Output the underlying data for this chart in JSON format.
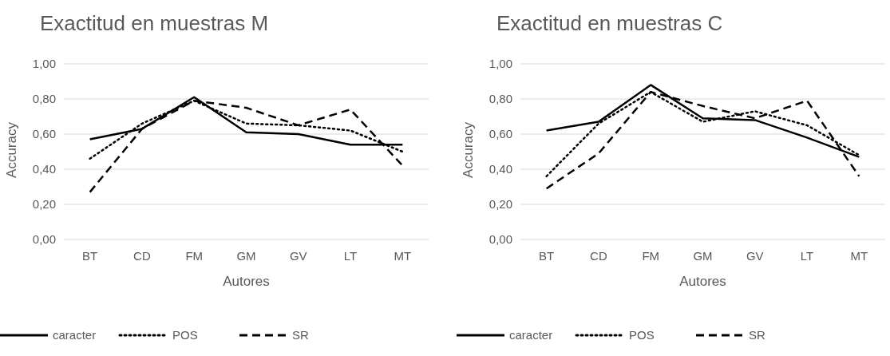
{
  "chart_data": [
    {
      "type": "line",
      "title": "Exactitud en muestras M",
      "xlabel": "Autores",
      "ylabel": "Accuracy",
      "categories": [
        "BT",
        "CD",
        "FM",
        "GM",
        "GV",
        "LT",
        "MT"
      ],
      "series": [
        {
          "name": "caracter",
          "color": "#000000",
          "line_style": "solid",
          "values": [
            0.57,
            0.63,
            0.81,
            0.61,
            0.6,
            0.54,
            0.54
          ]
        },
        {
          "name": "POS",
          "color": "#000000",
          "line_style": "dotted",
          "values": [
            0.46,
            0.66,
            0.79,
            0.66,
            0.65,
            0.62,
            0.5
          ]
        },
        {
          "name": "SR",
          "color": "#000000",
          "line_style": "dashed",
          "values": [
            0.27,
            0.63,
            0.79,
            0.75,
            0.65,
            0.74,
            0.42
          ]
        }
      ],
      "ylim": [
        0,
        1
      ],
      "yticks": [
        {
          "value": 0,
          "label": "0,00"
        },
        {
          "value": 0.2,
          "label": "0,20"
        },
        {
          "value": 0.4,
          "label": "0,40"
        },
        {
          "value": 0.6,
          "label": "0,60"
        },
        {
          "value": 0.8,
          "label": "0,80"
        },
        {
          "value": 1,
          "label": "1,00"
        }
      ],
      "grid": "y",
      "legend": "bottom"
    },
    {
      "type": "line",
      "title": "Exactitud en muestras C",
      "xlabel": "Autores",
      "ylabel": "Accuracy",
      "categories": [
        "BT",
        "CD",
        "FM",
        "GM",
        "GV",
        "LT",
        "MT"
      ],
      "series": [
        {
          "name": "caracter",
          "color": "#000000",
          "line_style": "solid",
          "values": [
            0.62,
            0.67,
            0.88,
            0.69,
            0.68,
            0.58,
            0.47
          ]
        },
        {
          "name": "POS",
          "color": "#000000",
          "line_style": "dotted",
          "values": [
            0.36,
            0.66,
            0.84,
            0.67,
            0.73,
            0.65,
            0.48
          ]
        },
        {
          "name": "SR",
          "color": "#000000",
          "line_style": "dashed",
          "values": [
            0.29,
            0.49,
            0.84,
            0.76,
            0.69,
            0.79,
            0.36
          ]
        }
      ],
      "ylim": [
        0,
        1
      ],
      "yticks": [
        {
          "value": 0,
          "label": "0,00"
        },
        {
          "value": 0.2,
          "label": "0,20"
        },
        {
          "value": 0.4,
          "label": "0,40"
        },
        {
          "value": 0.6,
          "label": "0,60"
        },
        {
          "value": 0.8,
          "label": "0,80"
        },
        {
          "value": 1,
          "label": "1,00"
        }
      ],
      "grid": "y",
      "legend": "bottom"
    }
  ]
}
